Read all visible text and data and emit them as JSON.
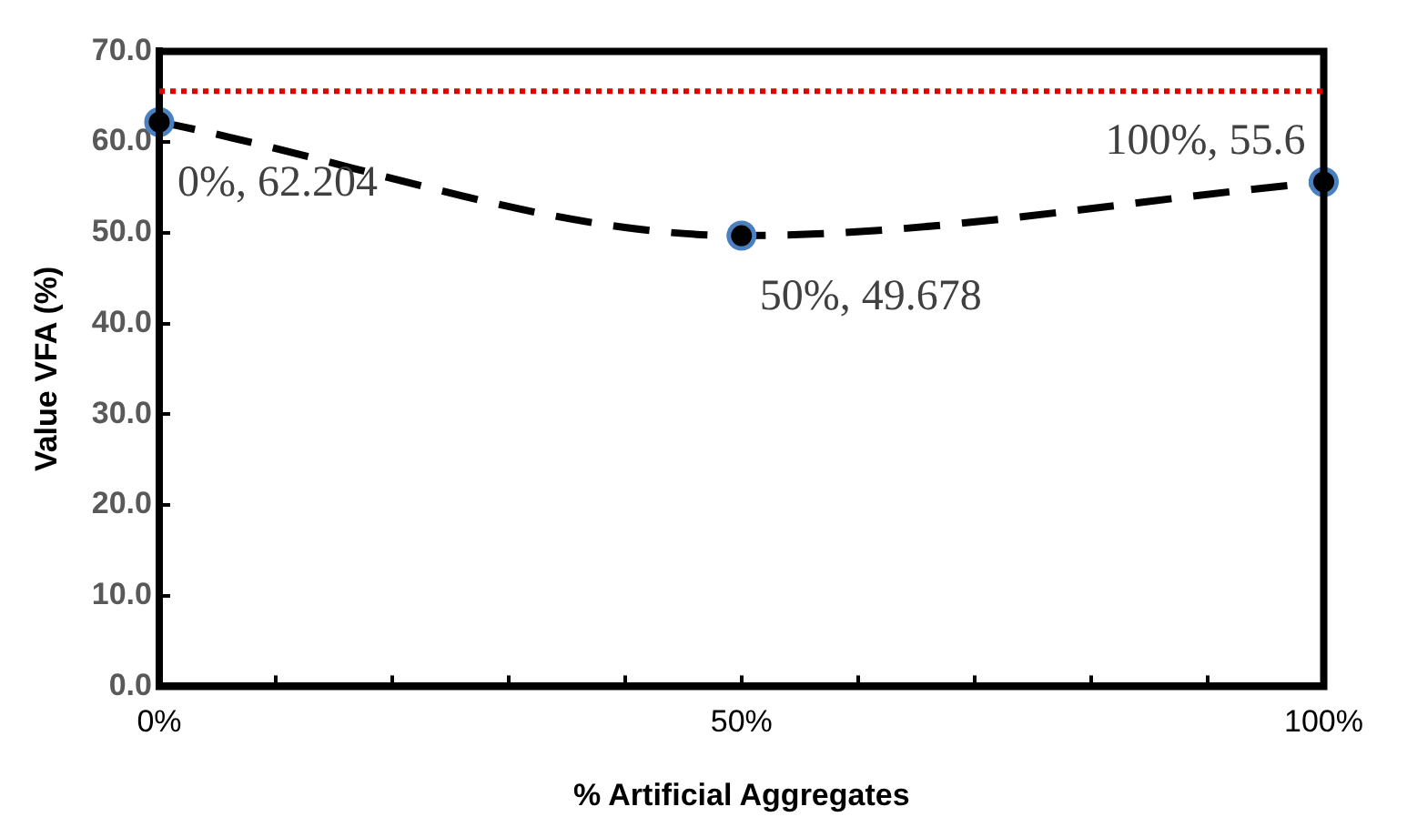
{
  "chart_data": {
    "type": "line",
    "xlabel": "% Artificial Aggregates",
    "ylabel": "Value VFA (%)",
    "x": [
      0,
      50,
      100
    ],
    "series": [
      {
        "color": "#000000",
        "values": [
          62.204,
          49.678,
          55.6
        ],
        "value_labels": [
          "0%, 62.204",
          "50%, 49.678",
          "100%, 55.6"
        ]
      }
    ],
    "xlim": [
      0,
      100
    ],
    "xticks": [
      {
        "value": 0,
        "label": "0%"
      },
      {
        "value": 10,
        "label": null
      },
      {
        "value": 20,
        "label": null
      },
      {
        "value": 30,
        "label": null
      },
      {
        "value": 40,
        "label": null
      },
      {
        "value": 50,
        "label": "50%"
      },
      {
        "value": 60,
        "label": null
      },
      {
        "value": 70,
        "label": null
      },
      {
        "value": 80,
        "label": null
      },
      {
        "value": 90,
        "label": null
      },
      {
        "value": 100,
        "label": "100%"
      }
    ],
    "ylim": [
      0,
      70
    ],
    "yticks": [
      {
        "value": 0,
        "label": "0.0"
      },
      {
        "value": 10,
        "label": "10.0"
      },
      {
        "value": 20,
        "label": "20.0"
      },
      {
        "value": 30,
        "label": "30.0"
      },
      {
        "value": 40,
        "label": "40.0"
      },
      {
        "value": 50,
        "label": "50.0"
      },
      {
        "value": 60,
        "label": "60.0"
      },
      {
        "value": 70,
        "label": "70.0"
      }
    ],
    "ref_lines": [
      {
        "axis": "y",
        "value": 65.6,
        "color": "#e00000",
        "line_style": "dotted"
      }
    ],
    "grid": false,
    "legend": false,
    "marker": "circle",
    "line_style": "dashed"
  }
}
